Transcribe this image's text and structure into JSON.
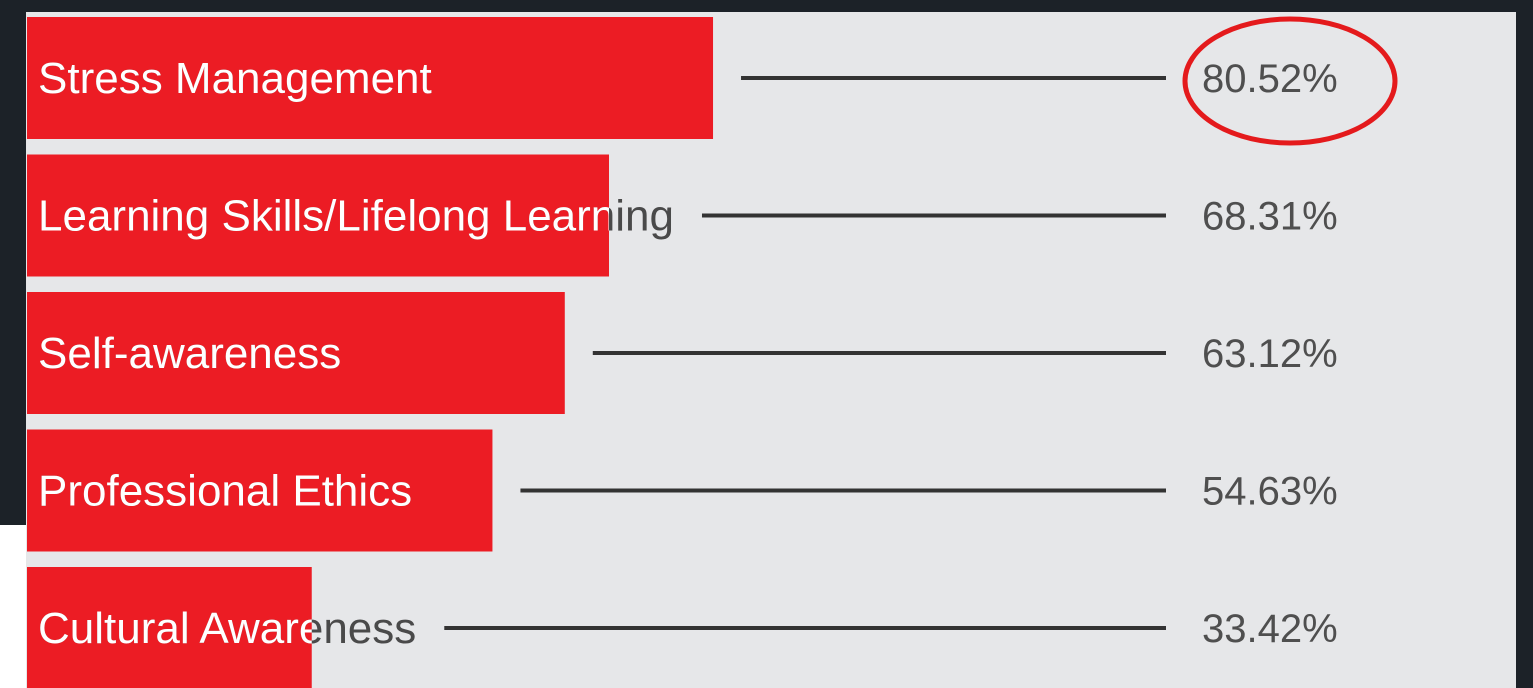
{
  "chart_data": {
    "type": "bar",
    "orientation": "horizontal",
    "categories": [
      "Stress Management",
      "Learning Skills/Lifelong Learning",
      "Self-awareness",
      "Professional Ethics",
      "Cultural Awareness"
    ],
    "values": [
      80.52,
      68.31,
      63.12,
      54.63,
      33.42
    ],
    "value_labels": [
      "80.52%",
      "68.31%",
      "63.12%",
      "54.63%",
      "33.42%"
    ],
    "unit": "%",
    "grid": false,
    "legend": "none",
    "annotations": [
      {
        "type": "circle",
        "target": "80.52%",
        "color": "#e41a1c"
      }
    ]
  },
  "colors": {
    "bar": "#ec1c24",
    "background": "#e6e7e9",
    "leader_line": "#333333",
    "highlight_circle": "#e41a1c"
  }
}
